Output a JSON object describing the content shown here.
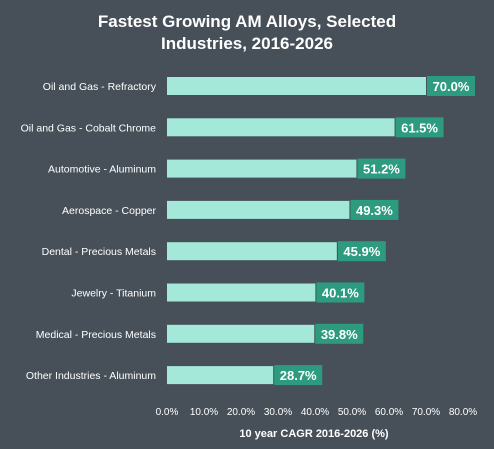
{
  "chart_data": {
    "type": "bar",
    "orientation": "horizontal",
    "title": "Fastest Growing AM Alloys, Selected Industries, 2016-2026",
    "title_lines": [
      "Fastest Growing AM Alloys, Selected",
      "Industries, 2016-2026"
    ],
    "xlabel": "10 year CAGR 2016-2026 (%)",
    "ylabel": "",
    "categories": [
      "Oil and Gas - Refractory",
      "Oil and Gas - Cobalt Chrome",
      "Automotive - Aluminum",
      "Aerospace - Copper",
      "Dental - Precious Metals",
      "Jewelry - Titanium",
      "Medical - Precious Metals",
      "Other Industries - Aluminum"
    ],
    "values": [
      70.0,
      61.5,
      51.2,
      49.3,
      45.9,
      40.1,
      39.8,
      28.7
    ],
    "data_labels": [
      "70.0%",
      "61.5%",
      "51.2%",
      "49.3%",
      "45.9%",
      "40.1%",
      "39.8%",
      "28.7%"
    ],
    "xlim": [
      0,
      80
    ],
    "xticks": [
      0,
      10,
      20,
      30,
      40,
      50,
      60,
      70,
      80
    ],
    "xtick_labels": [
      "0.0%",
      "10.0%",
      "20.0%",
      "30.0%",
      "40.0%",
      "50.0%",
      "60.0%",
      "70.0%",
      "80.0%"
    ],
    "grid": false,
    "legend": "none",
    "colors": {
      "background": "#475059",
      "bar": "#a3e8d8",
      "label_box": "#2d9b7f",
      "label_text": "#ffffff",
      "text": "#ffffff"
    }
  }
}
